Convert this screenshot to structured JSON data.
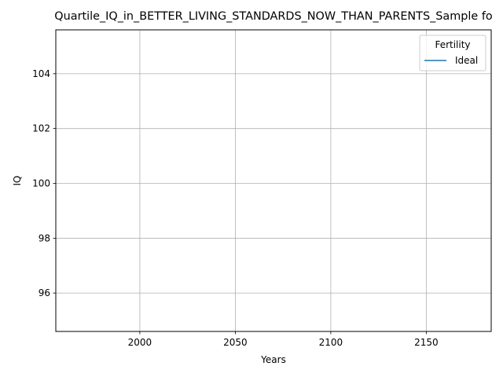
{
  "chart_data": {
    "type": "line",
    "title": "Quartile_IQ_in_BETTER_LIVING_STANDARDS_NOW_THAN_PARENTS_Sample fo",
    "xlabel": "Years",
    "ylabel": "IQ",
    "xlim": [
      1956,
      2184
    ],
    "ylim": [
      94.6,
      105.6
    ],
    "xticks": [
      2000,
      2050,
      2100,
      2150
    ],
    "yticks": [
      96,
      98,
      100,
      102,
      104
    ],
    "grid": true,
    "legend": {
      "title": "Fertility",
      "placement": "top-right"
    },
    "series": [
      {
        "name": "Ideal",
        "color": "#1f77b4",
        "x": [],
        "y": []
      }
    ]
  }
}
